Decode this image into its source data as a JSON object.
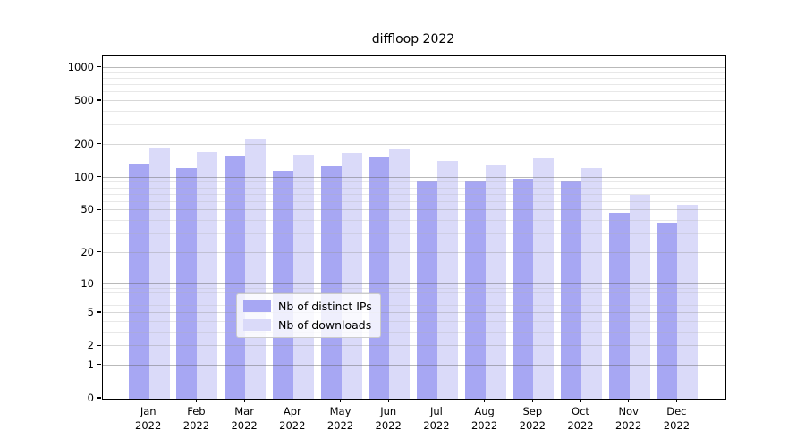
{
  "title": "diffloop 2022",
  "chart_data": {
    "type": "bar",
    "title": "diffloop 2022",
    "scale": "log1p",
    "grid": "on",
    "legend_position": "lower center",
    "categories": [
      "Jan",
      "Feb",
      "Mar",
      "Apr",
      "May",
      "Jun",
      "Jul",
      "Aug",
      "Sep",
      "Oct",
      "Nov",
      "Dec"
    ],
    "year": "2022",
    "series": [
      {
        "name": "Nb of distinct IPs",
        "color": "#a7a7f3",
        "values": [
          131,
          123,
          157,
          115,
          127,
          155,
          95,
          92,
          97,
          94,
          48,
          38
        ]
      },
      {
        "name": "Nb of downloads",
        "color": "#dadaf9",
        "values": [
          190,
          171,
          227,
          163,
          168,
          182,
          143,
          130,
          151,
          122,
          70,
          57
        ]
      }
    ],
    "yticks": [
      0,
      1,
      2,
      5,
      10,
      20,
      50,
      100,
      200,
      500,
      1000
    ],
    "ylim": [
      0,
      1272
    ],
    "grid_major_ticks": [
      1,
      10,
      100,
      1000
    ],
    "grid_mid_ticks": [
      2,
      5,
      20,
      50,
      200,
      500
    ],
    "grid_minor_base": [
      3,
      4,
      6,
      7,
      8,
      9
    ],
    "colors": {
      "axis": "#000000",
      "grid_major": "#b3b3b3",
      "grid_mid": "#d6d6d6",
      "grid_minor": "#e9e9e9",
      "legend_border": "#cccccc"
    }
  }
}
